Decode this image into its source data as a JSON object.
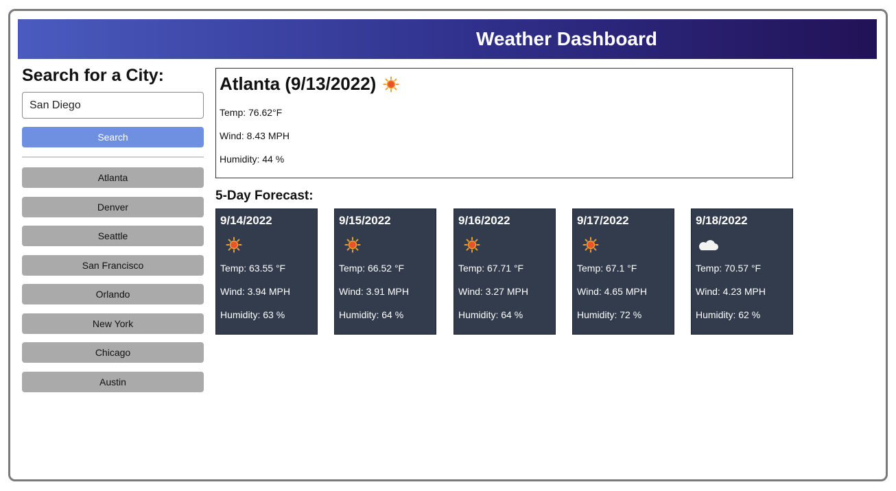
{
  "header": {
    "title": "Weather Dashboard"
  },
  "sidebar": {
    "title": "Search for a City:",
    "search_value": "San Diego",
    "search_button": "Search",
    "history": [
      "Atlanta",
      "Denver",
      "Seattle",
      "San Francisco",
      "Orlando",
      "New York",
      "Chicago",
      "Austin"
    ]
  },
  "current": {
    "title": "Atlanta (9/13/2022)",
    "icon": "sun-icon",
    "temp": "Temp: 76.62°F",
    "wind": "Wind: 8.43 MPH",
    "humidity": "Humidity: 44 %"
  },
  "forecast": {
    "title": "5-Day Forecast:",
    "days": [
      {
        "date": "9/14/2022",
        "icon": "sun-icon",
        "temp": "Temp: 63.55 °F",
        "wind": "Wind: 3.94 MPH",
        "humidity": "Humidity: 63 %"
      },
      {
        "date": "9/15/2022",
        "icon": "sun-icon",
        "temp": "Temp: 66.52 °F",
        "wind": "Wind: 3.91 MPH",
        "humidity": "Humidity: 64 %"
      },
      {
        "date": "9/16/2022",
        "icon": "sun-icon",
        "temp": "Temp: 67.71 °F",
        "wind": "Wind: 3.27 MPH",
        "humidity": "Humidity: 64 %"
      },
      {
        "date": "9/17/2022",
        "icon": "sun-icon",
        "temp": "Temp: 67.1 °F",
        "wind": "Wind: 4.65 MPH",
        "humidity": "Humidity: 72 %"
      },
      {
        "date": "9/18/2022",
        "icon": "cloud-moon-icon",
        "temp": "Temp: 70.57 °F",
        "wind": "Wind: 4.23 MPH",
        "humidity": "Humidity: 62 %"
      }
    ]
  }
}
